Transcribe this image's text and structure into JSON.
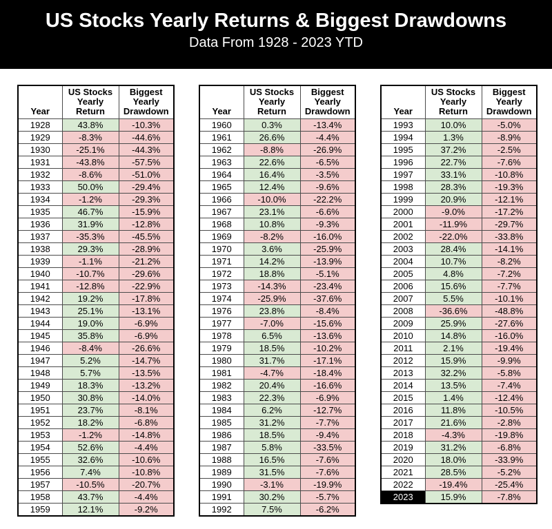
{
  "colors": {
    "positive_bg": "#d9ead3",
    "negative_bg": "#f4cccc",
    "masthead_bg": "#000000",
    "masthead_fg": "#ffffff",
    "highlight_year_bg": "#000000",
    "highlight_year_fg": "#ffffff"
  },
  "chart_data": {
    "type": "table",
    "title": "US Stocks Yearly Returns & Biggest Drawdowns",
    "subtitle": "Data From 1928 - 2023 YTD",
    "columns": [
      "Year",
      "US Stocks\nYearly\nReturn",
      "Biggest\nYearly\nDrawdown"
    ],
    "highlight_year": "2023",
    "tables": [
      {
        "rows": [
          [
            "1928",
            "43.8%",
            "-10.3%"
          ],
          [
            "1929",
            "-8.3%",
            "-44.6%"
          ],
          [
            "1930",
            "-25.1%",
            "-44.3%"
          ],
          [
            "1931",
            "-43.8%",
            "-57.5%"
          ],
          [
            "1932",
            "-8.6%",
            "-51.0%"
          ],
          [
            "1933",
            "50.0%",
            "-29.4%"
          ],
          [
            "1934",
            "-1.2%",
            "-29.3%"
          ],
          [
            "1935",
            "46.7%",
            "-15.9%"
          ],
          [
            "1936",
            "31.9%",
            "-12.8%"
          ],
          [
            "1937",
            "-35.3%",
            "-45.5%"
          ],
          [
            "1938",
            "29.3%",
            "-28.9%"
          ],
          [
            "1939",
            "-1.1%",
            "-21.2%"
          ],
          [
            "1940",
            "-10.7%",
            "-29.6%"
          ],
          [
            "1941",
            "-12.8%",
            "-22.9%"
          ],
          [
            "1942",
            "19.2%",
            "-17.8%"
          ],
          [
            "1943",
            "25.1%",
            "-13.1%"
          ],
          [
            "1944",
            "19.0%",
            "-6.9%"
          ],
          [
            "1945",
            "35.8%",
            "-6.9%"
          ],
          [
            "1946",
            "-8.4%",
            "-26.6%"
          ],
          [
            "1947",
            "5.2%",
            "-14.7%"
          ],
          [
            "1948",
            "5.7%",
            "-13.5%"
          ],
          [
            "1949",
            "18.3%",
            "-13.2%"
          ],
          [
            "1950",
            "30.8%",
            "-14.0%"
          ],
          [
            "1951",
            "23.7%",
            "-8.1%"
          ],
          [
            "1952",
            "18.2%",
            "-6.8%"
          ],
          [
            "1953",
            "-1.2%",
            "-14.8%"
          ],
          [
            "1954",
            "52.6%",
            "-4.4%"
          ],
          [
            "1955",
            "32.6%",
            "-10.6%"
          ],
          [
            "1956",
            "7.4%",
            "-10.8%"
          ],
          [
            "1957",
            "-10.5%",
            "-20.7%"
          ],
          [
            "1958",
            "43.7%",
            "-4.4%"
          ],
          [
            "1959",
            "12.1%",
            "-9.2%"
          ]
        ]
      },
      {
        "rows": [
          [
            "1960",
            "0.3%",
            "-13.4%"
          ],
          [
            "1961",
            "26.6%",
            "-4.4%"
          ],
          [
            "1962",
            "-8.8%",
            "-26.9%"
          ],
          [
            "1963",
            "22.6%",
            "-6.5%"
          ],
          [
            "1964",
            "16.4%",
            "-3.5%"
          ],
          [
            "1965",
            "12.4%",
            "-9.6%"
          ],
          [
            "1966",
            "-10.0%",
            "-22.2%"
          ],
          [
            "1967",
            "23.1%",
            "-6.6%"
          ],
          [
            "1968",
            "10.8%",
            "-9.3%"
          ],
          [
            "1969",
            "-8.2%",
            "-16.0%"
          ],
          [
            "1970",
            "3.6%",
            "-25.9%"
          ],
          [
            "1971",
            "14.2%",
            "-13.9%"
          ],
          [
            "1972",
            "18.8%",
            "-5.1%"
          ],
          [
            "1973",
            "-14.3%",
            "-23.4%"
          ],
          [
            "1974",
            "-25.9%",
            "-37.6%"
          ],
          [
            "1976",
            "23.8%",
            "-8.4%"
          ],
          [
            "1977",
            "-7.0%",
            "-15.6%"
          ],
          [
            "1978",
            "6.5%",
            "-13.6%"
          ],
          [
            "1979",
            "18.5%",
            "-10.2%"
          ],
          [
            "1980",
            "31.7%",
            "-17.1%"
          ],
          [
            "1981",
            "-4.7%",
            "-18.4%"
          ],
          [
            "1982",
            "20.4%",
            "-16.6%"
          ],
          [
            "1983",
            "22.3%",
            "-6.9%"
          ],
          [
            "1984",
            "6.2%",
            "-12.7%"
          ],
          [
            "1985",
            "31.2%",
            "-7.7%"
          ],
          [
            "1986",
            "18.5%",
            "-9.4%"
          ],
          [
            "1987",
            "5.8%",
            "-33.5%"
          ],
          [
            "1988",
            "16.5%",
            "-7.6%"
          ],
          [
            "1989",
            "31.5%",
            "-7.6%"
          ],
          [
            "1990",
            "-3.1%",
            "-19.9%"
          ],
          [
            "1991",
            "30.2%",
            "-5.7%"
          ],
          [
            "1992",
            "7.5%",
            "-6.2%"
          ]
        ]
      },
      {
        "rows": [
          [
            "1993",
            "10.0%",
            "-5.0%"
          ],
          [
            "1994",
            "1.3%",
            "-8.9%"
          ],
          [
            "1995",
            "37.2%",
            "-2.5%"
          ],
          [
            "1996",
            "22.7%",
            "-7.6%"
          ],
          [
            "1997",
            "33.1%",
            "-10.8%"
          ],
          [
            "1998",
            "28.3%",
            "-19.3%"
          ],
          [
            "1999",
            "20.9%",
            "-12.1%"
          ],
          [
            "2000",
            "-9.0%",
            "-17.2%"
          ],
          [
            "2001",
            "-11.9%",
            "-29.7%"
          ],
          [
            "2002",
            "-22.0%",
            "-33.8%"
          ],
          [
            "2003",
            "28.4%",
            "-14.1%"
          ],
          [
            "2004",
            "10.7%",
            "-8.2%"
          ],
          [
            "2005",
            "4.8%",
            "-7.2%"
          ],
          [
            "2006",
            "15.6%",
            "-7.7%"
          ],
          [
            "2007",
            "5.5%",
            "-10.1%"
          ],
          [
            "2008",
            "-36.6%",
            "-48.8%"
          ],
          [
            "2009",
            "25.9%",
            "-27.6%"
          ],
          [
            "2010",
            "14.8%",
            "-16.0%"
          ],
          [
            "2011",
            "2.1%",
            "-19.4%"
          ],
          [
            "2012",
            "15.9%",
            "-9.9%"
          ],
          [
            "2013",
            "32.2%",
            "-5.8%"
          ],
          [
            "2014",
            "13.5%",
            "-7.4%"
          ],
          [
            "2015",
            "1.4%",
            "-12.4%"
          ],
          [
            "2016",
            "11.8%",
            "-10.5%"
          ],
          [
            "2017",
            "21.6%",
            "-2.8%"
          ],
          [
            "2018",
            "-4.3%",
            "-19.8%"
          ],
          [
            "2019",
            "31.2%",
            "-6.8%"
          ],
          [
            "2020",
            "18.0%",
            "-33.9%"
          ],
          [
            "2021",
            "28.5%",
            "-5.2%"
          ],
          [
            "2022",
            "-19.4%",
            "-25.4%"
          ],
          [
            "2023",
            "15.9%",
            "-7.8%"
          ]
        ]
      }
    ]
  }
}
